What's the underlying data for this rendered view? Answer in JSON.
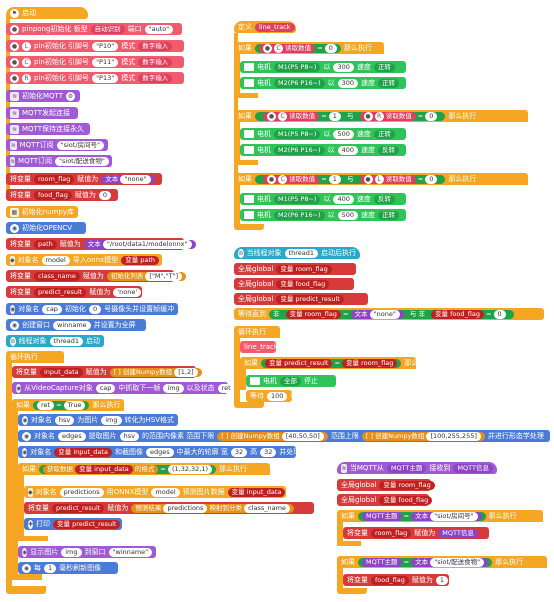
{
  "left": {
    "start": "启动",
    "pinpong_init": "pinpong初始化 板型",
    "board": "自动识别",
    "port_label": "端口",
    "port_val": "\"auto\"",
    "pins": [
      {
        "letter": "L",
        "text": "pin初始化 引脚号",
        "pin": "\"P10\"",
        "mode": "模式",
        "modev": "数字输入"
      },
      {
        "letter": "C",
        "text": "pin初始化 引脚号",
        "pin": "\"P11\"",
        "mode": "模式",
        "modev": "数字输入"
      },
      {
        "letter": "R",
        "text": "pin初始化 引脚号",
        "pin": "\"P13\"",
        "mode": "模式",
        "modev": "数字输入"
      }
    ],
    "mqtt_init": "初始化MQTT",
    "mqtt_connect": "MQTT发起连接",
    "mqtt_keep": "MQTT保持连接永久",
    "sub_label": "MQTT订阅",
    "sub1": "\"siot/房间号\"",
    "sub2": "\"siot/配送食物\"",
    "set_var": "将变量",
    "assign": "赋值为",
    "room_flag": "room_flag",
    "text_label": "文本",
    "none_text": "\"none\"",
    "food_flag": "food_flag",
    "zero": "0",
    "init_numpy": "初始化numpy库",
    "init_opencv": "初始化OPENCV",
    "path": "path",
    "path_val": "\"/root/data1/modelonnx\"",
    "obj_label": "对象名",
    "model": "model",
    "load_onnx": "导入onnx模型",
    "var_path": "变量 path",
    "class_name": "class_name",
    "init_list": "初始化列表",
    "list_val": "[\"M\",\"T\"]",
    "predict_result": "predict_result",
    "none_plain": "'none'",
    "cap": "cap",
    "cam_init": "初始化",
    "cam_id": "0",
    "cam_rest": "号摄像头并设置帧缓冲",
    "create_win": "创建窗口",
    "winname": "winname",
    "fullscreen": "并设置为全屏",
    "thread_obj": "线程对象",
    "thread1": "thread1",
    "loop": "循环执行",
    "input_data": "input_data",
    "create_np": "创建Numpy数组",
    "np12": "[1,2]",
    "from_cap": "从VideoCapture对象",
    "read_next": "中抓取下一帧",
    "img": "img",
    "and_status": "以及状态",
    "ret": "ret",
    "if_label": "如果",
    "true_label": "True",
    "then": "那么执行",
    "hsv": "hsv",
    "convert": "为图片",
    "to_hsv": "转化为HSV格式",
    "edges": "edges",
    "extract": "提取图片",
    "range_low": "的范围内像素 范围下限",
    "low_val": "[40,50,50]",
    "range_high": "范围上限",
    "high_val": "[100,255,255]",
    "morph": "并进行形态学处理",
    "mask_label": "和截图像",
    "mid": "中最大的轮廓 宽",
    "w32": "32",
    "h_label": "高",
    "h32": "32",
    "preprocess": "并处理数据维度",
    "get_shape": "获取数据",
    "shape_of": "的格式",
    "shape_val": "(1,32,32,1)",
    "predictions": "predictions",
    "onnx_predict": "用ONNX模型",
    "predict_result_label": "预测图片数据",
    "predict_class": "预测结果",
    "max_idx": "映射到分类",
    "print": "打印",
    "show_img": "显示图片",
    "to_window": "到窗口",
    "winname_str": "\"winname\"",
    "wait": "每",
    "one": "1",
    "ms_refresh": "毫秒刷新图像"
  },
  "right": {
    "define": "定义",
    "line_track": "line_track",
    "if_label": "如果",
    "read_digital": "读取数值",
    "eq": "=",
    "and": "与",
    "then": "那么执行",
    "motor": "电机",
    "m1": "M1(P5 P8~)",
    "m2": "M2(P6 P16~)",
    "with": "以",
    "speed": "速度",
    "fwd": "正转",
    "rev": "反转",
    "C": "C",
    "L": "L",
    "R": "R",
    "v0": "0",
    "v1": "1",
    "blocks": [
      {
        "cond": "C=0",
        "m1s": "300",
        "m1d": "正转",
        "m2s": "300",
        "m2d": "正转"
      },
      {
        "cond": "C=1 与 R=0",
        "m1s": "500",
        "m1d": "正转",
        "m2s": "400",
        "m2d": "反转"
      },
      {
        "cond": "C=1 与 L=0",
        "m1s": "400",
        "m1d": "反转",
        "m2s": "500",
        "m2d": "正转"
      }
    ],
    "thread_run": "当线程对象",
    "thread1": "thread1",
    "start_exec": "启动后执行",
    "global": "全局global",
    "var": "变量",
    "room_flag": "room_flag",
    "food_flag": "food_flag",
    "predict_result": "predict_result",
    "wait_until": "等待直到",
    "not": "非",
    "none_text": "\"none\"",
    "loop": "循环执行",
    "stop_all": "全部",
    "stop": "停止",
    "wait": "等待",
    "wait_val": "100",
    "wait_unit": "秒",
    "mqtt_recv": "当MQTT从",
    "mqtt_topic": "MQTT主题",
    "recv_msg": "接收到",
    "mqtt_msg": "MQTT信息",
    "mqtt_topic_label": "MQTT主题",
    "topic_room": "\"siot/房间号\"",
    "topic_food": "\"siot/配送食物\"",
    "set_var": "将变量",
    "assign": "赋值为",
    "mqtt_info": "MQTT信息",
    "one": "1",
    "text": "文本"
  },
  "colors": {
    "orange": "#f5a623",
    "pink": "#f25a6e",
    "blue": "#4a7bd9",
    "red": "#d63a3a",
    "green": "#2ec45a",
    "purple": "#a05ad6",
    "teal": "#2aa8c7"
  }
}
